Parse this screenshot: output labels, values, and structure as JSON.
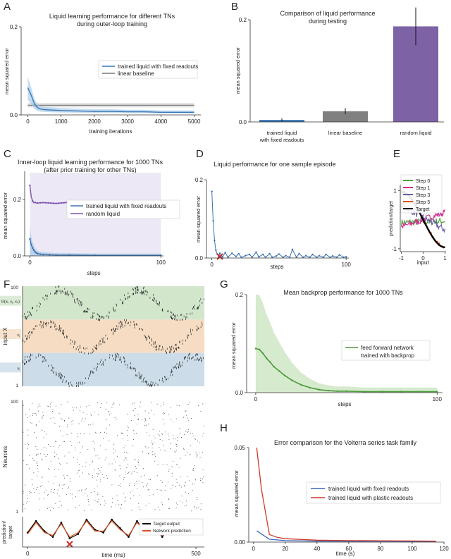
{
  "panels": {
    "A": {
      "letter": "A",
      "title_line1": "Liquid learning performance for different TNs",
      "title_line2": "during outer-loop training",
      "xlabel": "training iterations",
      "ylabel": "mean squared error",
      "xlim": [
        -200,
        5200
      ],
      "ylim": [
        0,
        0.2
      ],
      "xticks": [
        "0",
        "1000",
        "2000",
        "3000",
        "4000",
        "5000"
      ],
      "xtick_values": [
        0,
        1000,
        2000,
        3000,
        4000,
        5000
      ],
      "yticks": [
        "0.0",
        "0.2"
      ],
      "ytick_values": [
        0,
        0.2
      ],
      "legend": [
        "trained liquid with fixed readouts",
        "linear baseline"
      ],
      "series": [
        {
          "name": "trained liquid with fixed readouts",
          "color": "#3a78b5",
          "x": [
            0,
            100,
            200,
            300,
            400,
            500,
            700,
            1000,
            1500,
            2000,
            2500,
            3000,
            3500,
            4000,
            4500,
            5000
          ],
          "y": [
            0.062,
            0.045,
            0.025,
            0.016,
            0.013,
            0.012,
            0.011,
            0.01,
            0.009,
            0.008,
            0.008,
            0.007,
            0.007,
            0.006,
            0.006,
            0.006
          ]
        },
        {
          "name": "linear baseline",
          "color": "#777777",
          "x": [
            0,
            5000
          ],
          "y": [
            0.022,
            0.022
          ]
        }
      ]
    },
    "B": {
      "letter": "B",
      "title_line1": "Comparison of liquid performance",
      "title_line2": "during testing",
      "ylabel": "mean squared error",
      "ylim": [
        0,
        0.2
      ],
      "yticks": [
        "0.0",
        "0.2"
      ],
      "ytick_values": [
        0,
        0.2
      ],
      "categories": [
        "trained liquid\nwith fixed readouts",
        "linear baseline",
        "random liquid"
      ],
      "category_lines": [
        [
          "trained liquid",
          "with fixed readouts"
        ],
        [
          "linear baseline"
        ],
        [
          "random liquid"
        ]
      ],
      "values": [
        0.004,
        0.021,
        0.187
      ],
      "errors": [
        0.003,
        0.006,
        0.037
      ],
      "colors": [
        "#3c78b4",
        "#808080",
        "#7d62a6"
      ]
    },
    "C": {
      "letter": "C",
      "title_line1": "Inner-loop liquid learning performance for 1000 TNs",
      "title_line2": "(after prior training for other TNs)",
      "xlabel": "steps",
      "ylabel": "mean squared error",
      "ylim": [
        0,
        0.3
      ],
      "xticks": [
        "0",
        "100"
      ],
      "xtick_values": [
        0,
        100
      ],
      "yticks": [
        "0.0",
        "0.2"
      ],
      "ytick_values": [
        0,
        0.2
      ],
      "legend": [
        "trained liquid with fixed readouts",
        "random liquid"
      ],
      "series": [
        {
          "name": "trained liquid with fixed readouts",
          "color": "#3a72b0",
          "x": [
            0,
            1,
            2,
            3,
            4,
            5,
            6,
            8,
            10,
            15,
            20,
            30,
            50,
            100
          ],
          "y": [
            0.06,
            0.04,
            0.028,
            0.02,
            0.014,
            0.01,
            0.008,
            0.006,
            0.005,
            0.004,
            0.003,
            0.003,
            0.002,
            0.002
          ]
        },
        {
          "name": "random liquid",
          "color": "#7d52b0",
          "x": [
            0,
            1,
            2,
            3,
            4,
            5,
            10,
            20,
            30,
            40,
            50,
            60,
            70,
            80,
            90,
            100
          ],
          "y": [
            0.25,
            0.21,
            0.195,
            0.188,
            0.19,
            0.187,
            0.189,
            0.186,
            0.19,
            0.188,
            0.186,
            0.19,
            0.187,
            0.189,
            0.188,
            0.19
          ]
        }
      ]
    },
    "D": {
      "letter": "D",
      "title": "Liquid performance for one sample episode",
      "xlabel": "steps",
      "ylabel": "mean squared error",
      "ylim": [
        0,
        0.2
      ],
      "xticks": [
        "0",
        "100"
      ],
      "xtick_values": [
        0,
        100
      ],
      "yticks": [
        "0.0",
        "0.2"
      ],
      "ytick_values": [
        0,
        0.2
      ],
      "marker_step": 6,
      "series": {
        "color": "#3a72b0",
        "x": [
          0,
          1,
          2,
          3,
          4,
          5,
          6,
          7,
          8,
          10,
          12,
          15,
          18,
          20,
          22,
          25,
          28,
          30,
          33,
          35,
          38,
          40,
          43,
          45,
          48,
          50,
          53,
          55,
          58,
          60,
          63,
          65,
          68,
          70,
          73,
          75,
          78,
          80,
          83,
          85,
          88,
          90,
          93,
          95,
          98,
          100
        ],
        "y": [
          0.17,
          0.095,
          0.045,
          0.02,
          0.01,
          0.004,
          0.012,
          0.006,
          0.003,
          0.014,
          0.002,
          0.012,
          0.004,
          0.011,
          0.002,
          0.006,
          0.009,
          0.002,
          0.015,
          0.003,
          0.009,
          0.002,
          0.011,
          0.002,
          0.005,
          0.01,
          0.002,
          0.006,
          0.002,
          0.022,
          0.002,
          0.011,
          0.002,
          0.006,
          0.002,
          0.009,
          0.002,
          0.006,
          0.002,
          0.009,
          0.002,
          0.005,
          0.002,
          0.008,
          0.002,
          0.003
        ]
      }
    },
    "E": {
      "letter": "E",
      "xlabel": "input",
      "ylabel": "prediction/target",
      "xticks": [
        "-1",
        "0",
        "1"
      ],
      "xtick_values": [
        -1,
        0,
        1
      ],
      "yticks": [
        "1",
        "-1"
      ],
      "ytick_values": [
        1,
        -1
      ],
      "legend": [
        "Step 0",
        "Step 1",
        "Step 3",
        "Step 5",
        "Target"
      ],
      "series": [
        {
          "name": "Step 0",
          "color": "#4aa03c",
          "x": [
            -1,
            1
          ],
          "y": [
            -0.1,
            -0.05
          ]
        },
        {
          "name": "Step 1",
          "color": "#d12f8f",
          "x": [
            -1,
            1
          ],
          "y": [
            -0.25,
            0.25
          ]
        },
        {
          "name": "Step 3",
          "color": "#6a5aa8",
          "x": [
            -1,
            1
          ],
          "y": [
            0.5,
            -0.35
          ]
        },
        {
          "name": "Step 5",
          "color": "#d9531e",
          "x": [
            -1,
            1
          ],
          "y": [
            1.0,
            -1.0
          ]
        },
        {
          "name": "Target",
          "color": "#000000",
          "x": [
            -1,
            1
          ],
          "y": [
            1.0,
            -1.0
          ]
        }
      ]
    },
    "F": {
      "letter": "F",
      "raster1": {
        "ylabel": "input X",
        "ytick_top": "100",
        "ytick_bottom": "1",
        "band_labels": [
          "G(xᵢ, xⱼ, xₖ)",
          "xⱼ",
          "xᵢ"
        ],
        "band_colors": [
          "#d2e6cc",
          "#f6dcc2",
          "#ccdde9"
        ]
      },
      "raster2": {
        "ylabel": "Neurons",
        "ytick_top": "100",
        "ytick_bottom": "1"
      },
      "trace": {
        "xlabel": "time (ms)",
        "ylabel": "prediction/\ntarget",
        "xticks": [
          "0",
          "500"
        ],
        "xtick_values": [
          0,
          500
        ],
        "legend": [
          "Target output",
          "Network prediction"
        ],
        "series": [
          {
            "name": "Target output",
            "color": "#000000",
            "x": [
              0,
              25,
              50,
              75,
              100,
              125,
              150,
              175,
              200,
              225,
              250,
              275,
              300,
              325,
              350,
              375,
              400,
              425,
              450,
              475,
              500
            ],
            "y": [
              0.5,
              0.9,
              0.55,
              0.35,
              0.85,
              0.3,
              0.45,
              0.95,
              0.6,
              0.5,
              0.95,
              0.65,
              0.35,
              0.9,
              0.5,
              0.75,
              0.35,
              0.8,
              0.45,
              0.9,
              0.55
            ]
          },
          {
            "name": "Network prediction",
            "color": "#d9531e",
            "x": [
              0,
              25,
              50,
              75,
              100,
              125,
              150,
              175,
              200,
              225,
              250,
              275,
              300,
              325,
              350,
              375,
              400,
              425,
              450,
              475,
              500
            ],
            "y": [
              0.45,
              0.85,
              0.5,
              0.4,
              0.8,
              0.35,
              0.5,
              0.9,
              0.55,
              0.55,
              0.9,
              0.6,
              0.4,
              0.85,
              0.55,
              0.7,
              0.4,
              0.75,
              0.5,
              0.85,
              0.5
            ]
          }
        ],
        "marker_time": 125
      }
    },
    "G": {
      "letter": "G",
      "title": "Mean backprop performance for 1000 TNs",
      "xlabel": "steps",
      "ylabel": "mean squared error",
      "ylim": [
        0,
        0.2
      ],
      "xticks": [
        "0",
        "100"
      ],
      "xtick_values": [
        0,
        100
      ],
      "yticks": [
        "0.0",
        "0.2"
      ],
      "ytick_values": [
        0,
        0.2
      ],
      "legend": [
        "feed forward network",
        "trained with backprop"
      ],
      "series": {
        "name": "feed forward network trained with backprop",
        "color": "#4a9a3a",
        "x": [
          0,
          2,
          4,
          6,
          8,
          10,
          13,
          16,
          20,
          25,
          30,
          35,
          40,
          45,
          50,
          60,
          70,
          80,
          90,
          100
        ],
        "y": [
          0.09,
          0.088,
          0.08,
          0.07,
          0.062,
          0.053,
          0.044,
          0.035,
          0.025,
          0.016,
          0.01,
          0.006,
          0.004,
          0.003,
          0.003,
          0.002,
          0.002,
          0.002,
          0.002,
          0.002
        ]
      }
    },
    "H": {
      "letter": "H",
      "title": "Error comparison for the Volterra series task family",
      "xlabel": "time (s)",
      "ylabel": "mean squared error",
      "ylim": [
        0,
        0.05
      ],
      "xlim": [
        -3,
        120
      ],
      "xticks": [
        "0",
        "20",
        "40",
        "60",
        "80",
        "100",
        "120"
      ],
      "xtick_values": [
        0,
        20,
        40,
        60,
        80,
        100,
        120
      ],
      "yticks": [
        "0.00",
        "0.05"
      ],
      "ytick_values": [
        0,
        0.05
      ],
      "legend": [
        "trained liquid with fixed readouts",
        "trained liquid with plastic readouts"
      ],
      "series": [
        {
          "name": "trained liquid with fixed readouts",
          "color": "#3a68c0",
          "x": [
            2,
            10,
            20,
            40,
            60,
            80,
            100,
            115
          ],
          "y": [
            0.006,
            0.0015,
            0.0008,
            0.0005,
            0.0004,
            0.0004,
            0.0003,
            0.0003
          ]
        },
        {
          "name": "trained liquid with plastic readouts",
          "color": "#cc3b2a",
          "x": [
            2,
            5,
            10,
            15,
            20,
            40,
            60,
            80,
            100,
            115
          ],
          "y": [
            0.05,
            0.028,
            0.004,
            0.0025,
            0.0018,
            0.001,
            0.0008,
            0.0007,
            0.0006,
            0.0005
          ]
        }
      ]
    }
  }
}
